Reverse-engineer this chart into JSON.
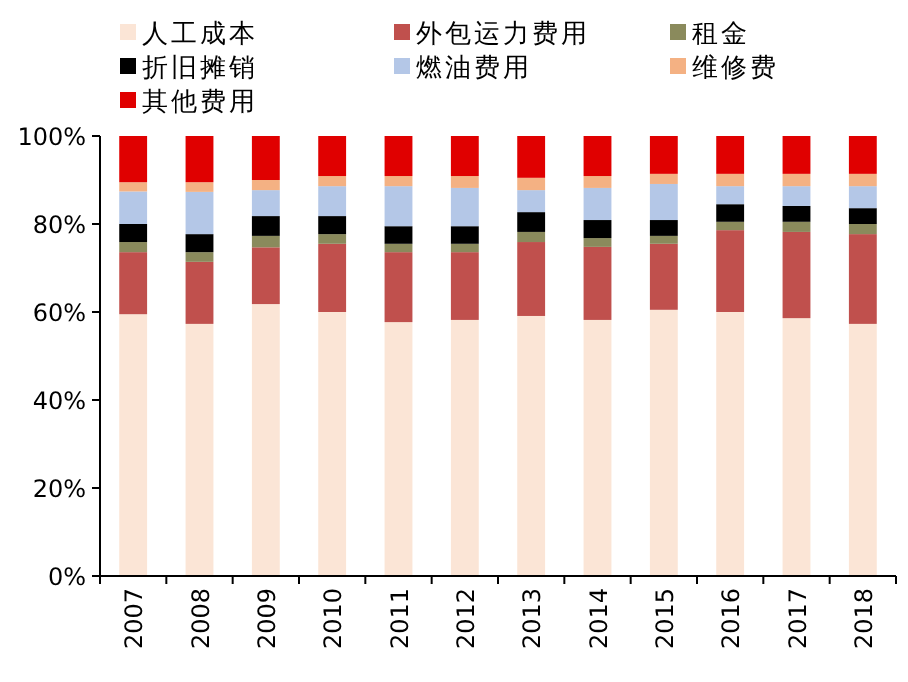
{
  "chart_data": {
    "type": "bar",
    "stacked": true,
    "legend": "top",
    "grid": false,
    "categories": [
      "2007",
      "2008",
      "2009",
      "2010",
      "2011",
      "2012",
      "2013",
      "2014",
      "2015",
      "2016",
      "2017",
      "2018"
    ],
    "ylim": [
      0,
      100
    ],
    "yticks": [
      {
        "value": 0,
        "label": "0%"
      },
      {
        "value": 20,
        "label": "20%"
      },
      {
        "value": 40,
        "label": "40%"
      },
      {
        "value": 60,
        "label": "60%"
      },
      {
        "value": 80,
        "label": "80%"
      },
      {
        "value": 100,
        "label": "100%"
      }
    ],
    "series": [
      {
        "name": "人工成本",
        "color": "#fbe5d6",
        "values": [
          59.5,
          57.3,
          61.8,
          60.0,
          57.7,
          58.2,
          59.1,
          58.2,
          60.5,
          60.0,
          58.6,
          57.3
        ]
      },
      {
        "name": "外包运力费用",
        "color": "#c0504d",
        "values": [
          14.1,
          14.1,
          12.9,
          15.5,
          15.9,
          15.4,
          16.8,
          16.6,
          15.0,
          18.6,
          19.6,
          20.4
        ]
      },
      {
        "name": "租金",
        "color": "#8a8a5c",
        "values": [
          2.3,
          2.2,
          2.6,
          2.2,
          1.9,
          1.9,
          2.3,
          2.0,
          1.8,
          1.9,
          2.3,
          2.3
        ]
      },
      {
        "name": "折旧摊销",
        "color": "#000000",
        "values": [
          4.1,
          4.1,
          4.5,
          4.1,
          4.0,
          4.0,
          4.5,
          4.1,
          3.6,
          4.0,
          3.6,
          3.6
        ]
      },
      {
        "name": "燃油费用",
        "color": "#b4c7e7",
        "values": [
          7.4,
          9.6,
          5.9,
          6.8,
          9.1,
          8.7,
          5.0,
          7.3,
          8.2,
          4.1,
          4.5,
          5.0
        ]
      },
      {
        "name": "维修费",
        "color": "#f4b183",
        "values": [
          2.1,
          2.2,
          2.3,
          2.3,
          2.3,
          2.7,
          2.8,
          2.7,
          2.3,
          2.8,
          2.8,
          2.8
        ]
      },
      {
        "name": "其他费用",
        "color": "#e00000",
        "values": [
          10.5,
          10.5,
          10.0,
          9.1,
          9.1,
          9.1,
          9.5,
          9.1,
          8.6,
          8.6,
          8.6,
          8.6
        ]
      }
    ]
  }
}
